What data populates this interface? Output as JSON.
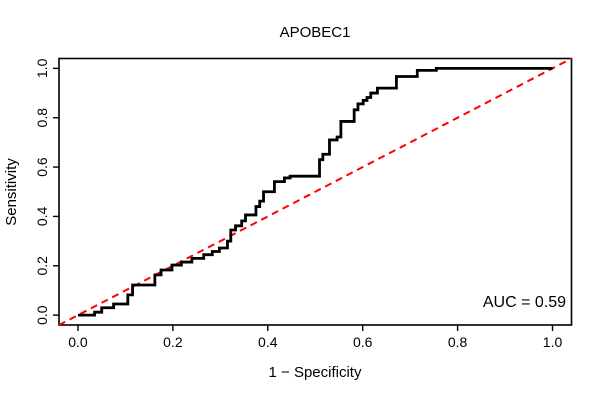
{
  "window": {
    "background": "#ffffff"
  },
  "chart_data": {
    "type": "line",
    "subtype": "roc-curve-step",
    "title": "APOBEC1",
    "xlabel": "1 − Specificity",
    "ylabel": "Sensitivity",
    "annotation": "AUC = 0.59",
    "auc": 0.59,
    "xlim": [
      -0.04,
      1.04
    ],
    "ylim": [
      -0.04,
      1.04
    ],
    "x_ticks": [
      0,
      0.2,
      0.4,
      0.6,
      0.8,
      1
    ],
    "x_tick_labels": [
      "0.0",
      "0.2",
      "0.4",
      "0.6",
      "0.8",
      "1.0"
    ],
    "y_ticks": [
      0,
      0.2,
      0.4,
      0.6,
      0.8,
      1
    ],
    "y_tick_labels": [
      "0.0",
      "0.2",
      "0.4",
      "0.6",
      "0.8",
      "1.0"
    ],
    "grid": false,
    "legend": "none",
    "colors": {
      "roc_curve": "#000000",
      "diagonal": "#ff0000",
      "axis": "#000000",
      "text": "#000000",
      "background": "#ffffff"
    },
    "series": [
      {
        "name": "ROC curve",
        "type": "step",
        "color": "#000000",
        "line_width": 2.8,
        "dash": "solid",
        "points": [
          [
            0.0,
            0.0
          ],
          [
            0.035,
            0.0
          ],
          [
            0.035,
            0.012
          ],
          [
            0.05,
            0.012
          ],
          [
            0.05,
            0.03
          ],
          [
            0.075,
            0.03
          ],
          [
            0.075,
            0.045
          ],
          [
            0.105,
            0.045
          ],
          [
            0.105,
            0.082
          ],
          [
            0.115,
            0.082
          ],
          [
            0.115,
            0.122
          ],
          [
            0.162,
            0.122
          ],
          [
            0.162,
            0.163
          ],
          [
            0.175,
            0.163
          ],
          [
            0.175,
            0.183
          ],
          [
            0.198,
            0.183
          ],
          [
            0.198,
            0.203
          ],
          [
            0.218,
            0.203
          ],
          [
            0.218,
            0.215
          ],
          [
            0.24,
            0.215
          ],
          [
            0.24,
            0.23
          ],
          [
            0.265,
            0.23
          ],
          [
            0.265,
            0.245
          ],
          [
            0.283,
            0.245
          ],
          [
            0.283,
            0.258
          ],
          [
            0.298,
            0.258
          ],
          [
            0.298,
            0.272
          ],
          [
            0.315,
            0.272
          ],
          [
            0.315,
            0.3
          ],
          [
            0.322,
            0.3
          ],
          [
            0.322,
            0.345
          ],
          [
            0.332,
            0.345
          ],
          [
            0.332,
            0.362
          ],
          [
            0.345,
            0.362
          ],
          [
            0.345,
            0.382
          ],
          [
            0.353,
            0.382
          ],
          [
            0.353,
            0.406
          ],
          [
            0.375,
            0.406
          ],
          [
            0.375,
            0.44
          ],
          [
            0.383,
            0.44
          ],
          [
            0.383,
            0.462
          ],
          [
            0.391,
            0.462
          ],
          [
            0.391,
            0.5
          ],
          [
            0.414,
            0.5
          ],
          [
            0.414,
            0.541
          ],
          [
            0.435,
            0.541
          ],
          [
            0.435,
            0.556
          ],
          [
            0.447,
            0.556
          ],
          [
            0.447,
            0.563
          ],
          [
            0.509,
            0.563
          ],
          [
            0.509,
            0.63
          ],
          [
            0.516,
            0.63
          ],
          [
            0.516,
            0.652
          ],
          [
            0.53,
            0.652
          ],
          [
            0.53,
            0.71
          ],
          [
            0.546,
            0.71
          ],
          [
            0.546,
            0.722
          ],
          [
            0.554,
            0.722
          ],
          [
            0.554,
            0.785
          ],
          [
            0.582,
            0.785
          ],
          [
            0.582,
            0.832
          ],
          [
            0.59,
            0.832
          ],
          [
            0.59,
            0.856
          ],
          [
            0.601,
            0.856
          ],
          [
            0.601,
            0.87
          ],
          [
            0.609,
            0.87
          ],
          [
            0.609,
            0.882
          ],
          [
            0.617,
            0.882
          ],
          [
            0.617,
            0.9
          ],
          [
            0.631,
            0.9
          ],
          [
            0.631,
            0.92
          ],
          [
            0.671,
            0.92
          ],
          [
            0.671,
            0.967
          ],
          [
            0.715,
            0.967
          ],
          [
            0.715,
            0.992
          ],
          [
            0.755,
            0.992
          ],
          [
            0.755,
            1.0
          ],
          [
            1.0,
            1.0
          ]
        ]
      },
      {
        "name": "chance diagonal",
        "type": "line",
        "color": "#ff0000",
        "line_width": 2,
        "dash": "dashed",
        "points": [
          [
            -0.04,
            -0.04
          ],
          [
            1.04,
            1.04
          ]
        ]
      }
    ]
  }
}
